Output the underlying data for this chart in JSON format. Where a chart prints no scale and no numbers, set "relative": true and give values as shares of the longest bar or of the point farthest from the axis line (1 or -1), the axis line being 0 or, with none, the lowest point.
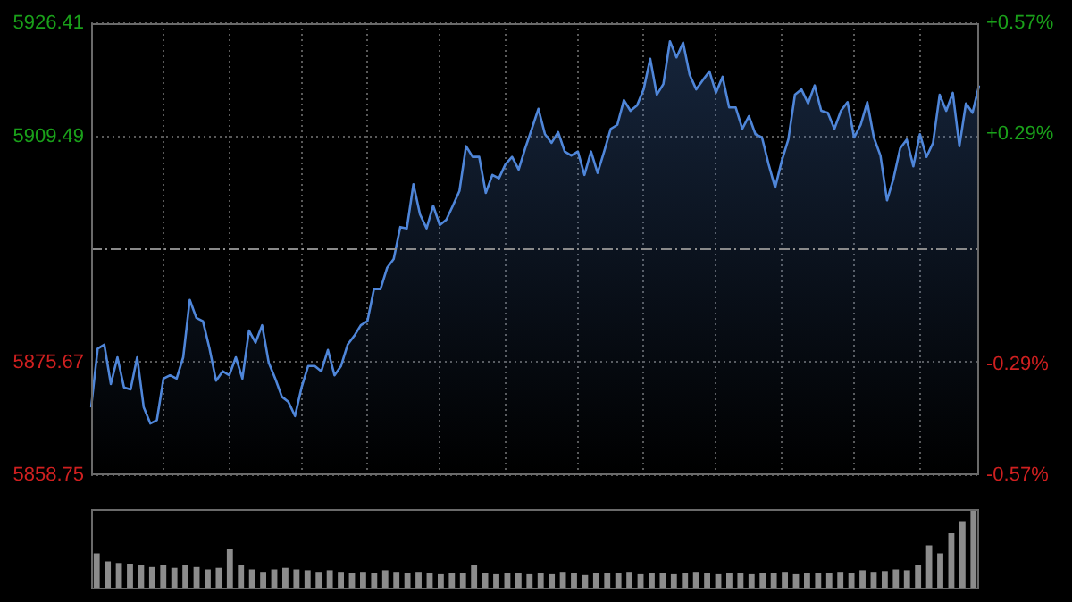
{
  "chart_data": [
    {
      "type": "area",
      "color": "#4f86d9",
      "categories": [
        null,
        null,
        null,
        null,
        null,
        null,
        null,
        null,
        null,
        null,
        null,
        null,
        null,
        null,
        null,
        null,
        null,
        null,
        null,
        null,
        null,
        null,
        null,
        null,
        null,
        null,
        null,
        null,
        null,
        null,
        null,
        null,
        null,
        null,
        null,
        null,
        null,
        null,
        null,
        null,
        null,
        null,
        null,
        null,
        null,
        null,
        null,
        null,
        null,
        null,
        null,
        null,
        null,
        null,
        null,
        null,
        null,
        null,
        null,
        null,
        null,
        null,
        null,
        null,
        null,
        null,
        null,
        null,
        null,
        null,
        null,
        null,
        null,
        null,
        null,
        null,
        null,
        null,
        null,
        null,
        null,
        null,
        null,
        null,
        null,
        null,
        null,
        null,
        null,
        null,
        null,
        null,
        null,
        null,
        null,
        null,
        null,
        null,
        null,
        null,
        null,
        null,
        null,
        null,
        null,
        null,
        null,
        null,
        null,
        null,
        null,
        null,
        null,
        null,
        null,
        null,
        null,
        null,
        null,
        null,
        null,
        null,
        null,
        null,
        null,
        null,
        null,
        null,
        null,
        null,
        null,
        null,
        null,
        null,
        null,
        null
      ],
      "values": [
        5868.9,
        5877.7,
        5878.3,
        5872.4,
        5876.4,
        5871.9,
        5871.6,
        5876.4,
        5868.9,
        5866.5,
        5867.0,
        5873.2,
        5873.7,
        5873.2,
        5876.4,
        5885.0,
        5882.3,
        5881.8,
        5877.7,
        5872.9,
        5874.3,
        5873.7,
        5876.4,
        5873.2,
        5880.4,
        5878.6,
        5881.2,
        5875.6,
        5873.2,
        5870.5,
        5869.7,
        5867.6,
        5871.9,
        5875.1,
        5875.1,
        5874.3,
        5877.5,
        5873.7,
        5875.1,
        5878.3,
        5879.6,
        5881.2,
        5881.8,
        5886.6,
        5886.6,
        5889.8,
        5891.1,
        5895.9,
        5895.7,
        5902.3,
        5897.8,
        5895.7,
        5899.1,
        5896.2,
        5897.0,
        5899.1,
        5901.3,
        5908.0,
        5906.4,
        5906.4,
        5901.0,
        5903.7,
        5903.2,
        5905.3,
        5906.4,
        5904.5,
        5907.7,
        5910.6,
        5913.6,
        5909.8,
        5908.5,
        5910.1,
        5907.2,
        5906.6,
        5907.2,
        5903.7,
        5907.2,
        5904.0,
        5907.2,
        5910.6,
        5911.2,
        5914.9,
        5913.3,
        5914.1,
        5916.5,
        5921.1,
        5915.7,
        5917.3,
        5923.7,
        5921.3,
        5923.5,
        5918.7,
        5916.5,
        5917.9,
        5919.2,
        5916.0,
        5918.4,
        5913.8,
        5913.8,
        5910.6,
        5912.5,
        5909.8,
        5909.3,
        5905.3,
        5901.8,
        5905.8,
        5909.0,
        5915.7,
        5916.5,
        5914.4,
        5917.1,
        5913.3,
        5913.0,
        5910.6,
        5913.3,
        5914.6,
        5909.3,
        5911.2,
        5914.6,
        5909.3,
        5906.6,
        5899.9,
        5903.2,
        5907.7,
        5909.0,
        5905.0,
        5909.8,
        5906.4,
        5908.5,
        5915.7,
        5913.3,
        5916.0,
        5908.0,
        5914.4,
        5913.0,
        5917.1
      ],
      "ylim": [
        5858.75,
        5926.41
      ],
      "yticks": [
        5858.75,
        5875.67,
        5909.49,
        5926.41
      ],
      "y2lim": [
        -0.57,
        0.57
      ],
      "y2ticks": [
        {
          "value": -0.57,
          "label": "-0.57%"
        },
        {
          "value": -0.29,
          "label": "-0.29%"
        },
        {
          "value": 0.29,
          "label": "+0.29%"
        },
        {
          "value": 0.57,
          "label": "+0.57%"
        }
      ],
      "ref_lines": [
        {
          "axis": "y",
          "value": 5892.58,
          "line_style": "dashed"
        }
      ],
      "grid": true,
      "tick_labels": "y"
    },
    {
      "type": "bar",
      "relative": true,
      "color": "#8c8c8c",
      "grid": false,
      "tick_labels": false,
      "categories": [
        null,
        null,
        null,
        null,
        null,
        null,
        null,
        null,
        null,
        null,
        null,
        null,
        null,
        null,
        null,
        null,
        null,
        null,
        null,
        null,
        null,
        null,
        null,
        null,
        null,
        null,
        null,
        null,
        null,
        null,
        null,
        null,
        null,
        null,
        null,
        null,
        null,
        null,
        null,
        null,
        null,
        null,
        null,
        null,
        null,
        null,
        null,
        null,
        null,
        null,
        null,
        null,
        null,
        null,
        null,
        null,
        null,
        null,
        null,
        null,
        null,
        null,
        null,
        null,
        null,
        null,
        null,
        null,
        null,
        null,
        null,
        null,
        null,
        null,
        null,
        null,
        null,
        null,
        null,
        null
      ],
      "values": [
        0.45,
        0.35,
        0.33,
        0.32,
        0.3,
        0.28,
        0.3,
        0.27,
        0.3,
        0.28,
        0.25,
        0.27,
        0.5,
        0.3,
        0.25,
        0.22,
        0.25,
        0.27,
        0.25,
        0.24,
        0.22,
        0.24,
        0.22,
        0.2,
        0.22,
        0.2,
        0.24,
        0.22,
        0.2,
        0.22,
        0.2,
        0.19,
        0.21,
        0.2,
        0.3,
        0.2,
        0.19,
        0.2,
        0.21,
        0.19,
        0.2,
        0.19,
        0.22,
        0.2,
        0.18,
        0.2,
        0.21,
        0.2,
        0.22,
        0.19,
        0.2,
        0.21,
        0.19,
        0.2,
        0.22,
        0.2,
        0.19,
        0.2,
        0.21,
        0.19,
        0.2,
        0.2,
        0.22,
        0.19,
        0.2,
        0.21,
        0.2,
        0.22,
        0.21,
        0.24,
        0.22,
        0.23,
        0.25,
        0.24,
        0.3,
        0.55,
        0.45,
        0.7,
        0.85,
        1
      ]
    }
  ]
}
